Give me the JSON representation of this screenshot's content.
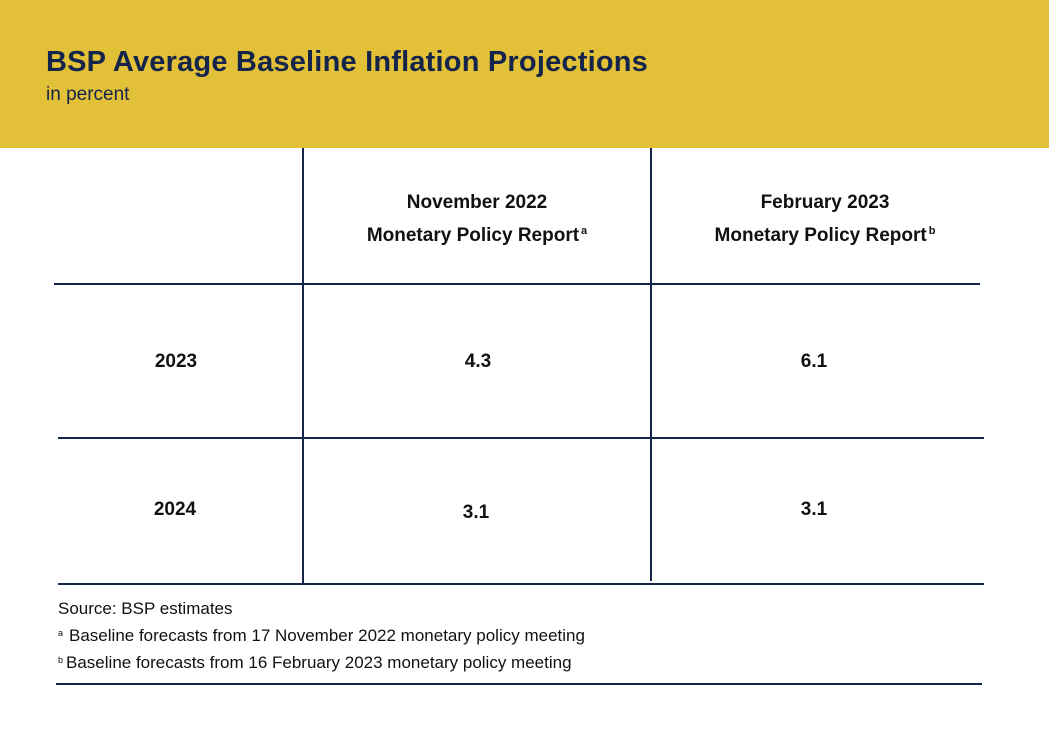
{
  "header": {
    "title": "BSP Average Baseline Inflation Projections",
    "subtitle": "in percent"
  },
  "table": {
    "columns": [
      {
        "line1": "November 2022",
        "line2": "Monetary Policy Report",
        "marker": "a"
      },
      {
        "line1": "February 2023",
        "line2": "Monetary Policy Report",
        "marker": "b"
      }
    ],
    "rows": [
      {
        "year": "2023",
        "values": [
          "4.3",
          "6.1"
        ]
      },
      {
        "year": "2024",
        "values": [
          "3.1",
          "3.1"
        ]
      }
    ]
  },
  "notes": {
    "source": "Source: BSP estimates",
    "footnotes": [
      {
        "marker": "a",
        "text": "Baseline forecasts from 17 November 2022 monetary policy meeting"
      },
      {
        "marker": "b",
        "text": "Baseline forecasts from 16 February 2023 monetary policy meeting"
      }
    ]
  },
  "colors": {
    "banner": "#e2c037",
    "navy": "#14244a"
  }
}
